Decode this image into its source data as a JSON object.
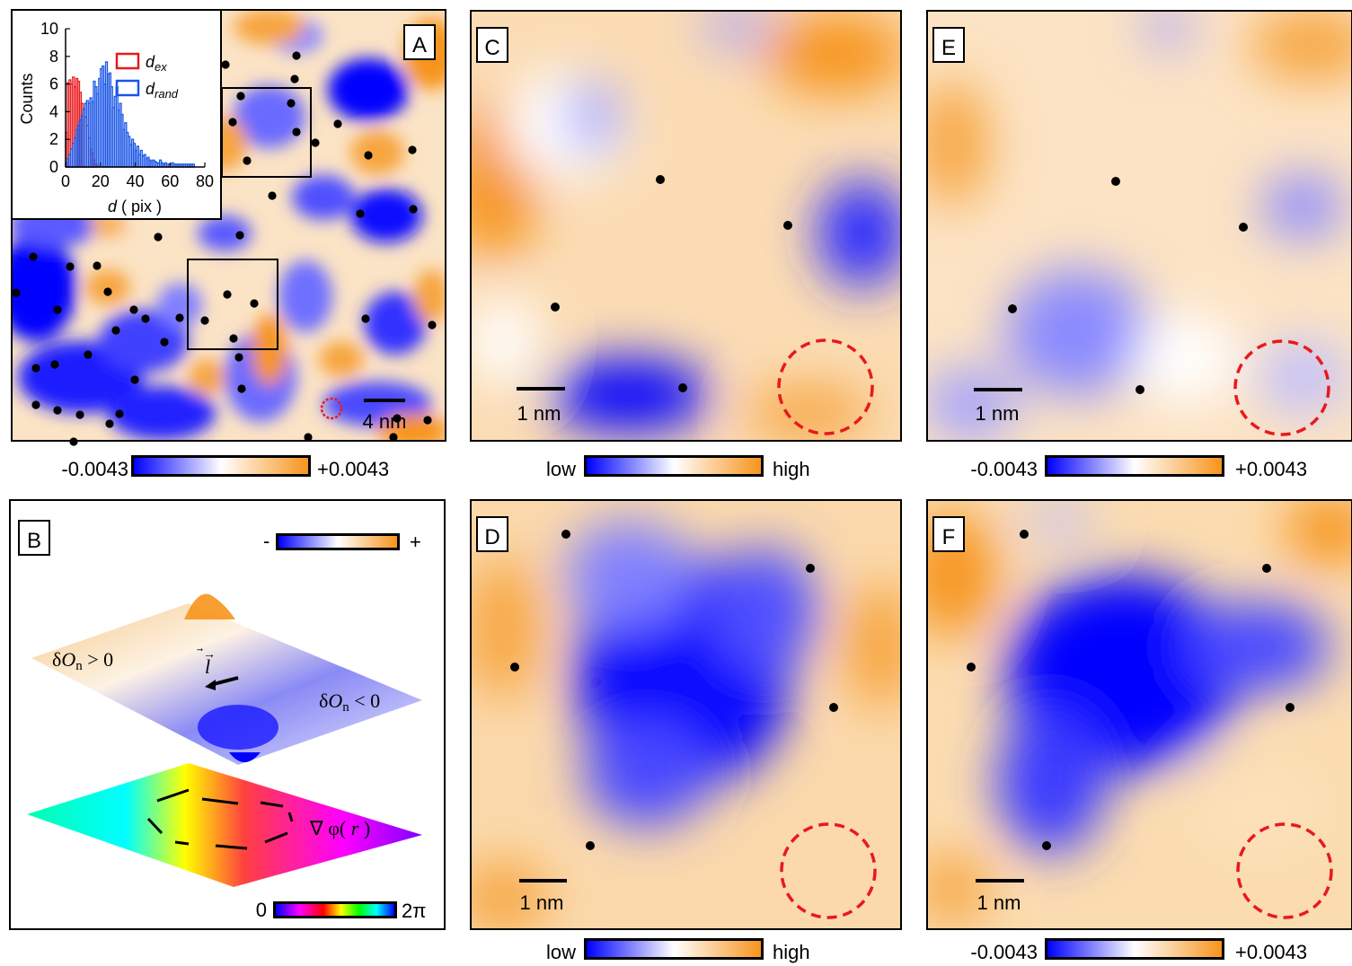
{
  "colors": {
    "low": "#0000ff",
    "mid": "#ffffff",
    "high": "#f7941d",
    "defect": "#000000",
    "circle": "#e8191d",
    "hist_ex": "#e8191d",
    "hist_rand": "#1a55e6"
  },
  "panels": {
    "A": {
      "label": "A",
      "scale_bar": "4 nm",
      "colorbar_min": "-0.0043",
      "colorbar_max": "+0.0043"
    },
    "B": {
      "label": "B",
      "colorbar_minus": "-",
      "colorbar_plus": "+",
      "phase_min": "0",
      "phase_max": "2π",
      "text_pos_prefix": "δ",
      "text_O": "O",
      "text_sub": "n",
      "text_pos_suffix": " > 0",
      "text_neg_suffix": " < 0",
      "text_l": "l",
      "text_grad": "∇ φ(",
      "text_r": "r",
      "text_close": ")"
    },
    "C": {
      "label": "C",
      "scale_bar": "1 nm",
      "colorbar_min": "low",
      "colorbar_max": "high"
    },
    "D": {
      "label": "D",
      "scale_bar": "1 nm",
      "colorbar_min": "low",
      "colorbar_max": "high"
    },
    "E": {
      "label": "E",
      "scale_bar": "1 nm",
      "colorbar_min": "-0.0043",
      "colorbar_max": "+0.0043"
    },
    "F": {
      "label": "F",
      "scale_bar": "1 nm",
      "colorbar_min": "-0.0043",
      "colorbar_max": "+0.0043"
    }
  },
  "chart_data": {
    "type": "bar",
    "xlabel_italic": "d",
    "xlabel_rest": " ( pix )",
    "ylabel": "Counts",
    "xlim": [
      0,
      80
    ],
    "ylim": [
      0,
      10
    ],
    "xticks": [
      "0",
      "20",
      "40",
      "60",
      "80"
    ],
    "yticks": [
      "0",
      "2",
      "4",
      "6",
      "8",
      "10"
    ],
    "legend": [
      {
        "name": "d",
        "sub": "ex"
      },
      {
        "name": "d",
        "sub": "rand"
      }
    ],
    "bin_width": 1,
    "series": [
      {
        "name": "d_ex",
        "x": [
          0,
          1,
          2,
          3,
          4,
          5,
          6,
          7,
          8,
          9,
          10,
          11,
          12,
          13,
          14,
          15,
          16,
          17,
          18
        ],
        "values": [
          2.5,
          6.1,
          6.3,
          6.0,
          6.5,
          5.8,
          6.4,
          6.2,
          5.4,
          4.6,
          4.2,
          3.6,
          3.0,
          2.1,
          1.3,
          1.0,
          0.5,
          0.2,
          0.1
        ]
      },
      {
        "name": "d_rand",
        "x": [
          0,
          1,
          2,
          3,
          4,
          5,
          6,
          7,
          8,
          9,
          10,
          11,
          12,
          13,
          14,
          15,
          16,
          17,
          18,
          19,
          20,
          21,
          22,
          23,
          24,
          25,
          26,
          27,
          28,
          29,
          30,
          31,
          32,
          33,
          34,
          35,
          36,
          37,
          38,
          39,
          40,
          41,
          42,
          43,
          44,
          45,
          46,
          47,
          48,
          49,
          50,
          51,
          52,
          53,
          54,
          55,
          56,
          57,
          58,
          59,
          60,
          61,
          62,
          63,
          64,
          65,
          66,
          67,
          68,
          69,
          70,
          71,
          72,
          73
        ],
        "values": [
          0.3,
          0.6,
          0.9,
          1.3,
          1.7,
          2.1,
          2.7,
          3.0,
          3.4,
          3.7,
          4.2,
          4.6,
          4.8,
          4.6,
          5.0,
          4.7,
          6.2,
          5.8,
          5.3,
          6.4,
          7.1,
          7.3,
          6.0,
          7.6,
          6.7,
          6.8,
          5.8,
          4.3,
          5.1,
          5.8,
          4.1,
          4.6,
          3.8,
          2.7,
          3.2,
          2.5,
          2.2,
          1.6,
          2.0,
          1.7,
          1.2,
          1.5,
          0.9,
          1.2,
          0.8,
          0.9,
          0.6,
          0.7,
          0.5,
          0.4,
          0.5,
          0.4,
          0.3,
          0.3,
          0.5,
          0.3,
          0.2,
          0.3,
          0.2,
          0.2,
          0.2,
          0.3,
          0.2,
          0.2,
          0.2,
          0.2,
          0.2,
          0.2,
          0.2,
          0.2,
          0.2,
          0.2,
          0.2,
          0.2
        ]
      }
    ]
  }
}
